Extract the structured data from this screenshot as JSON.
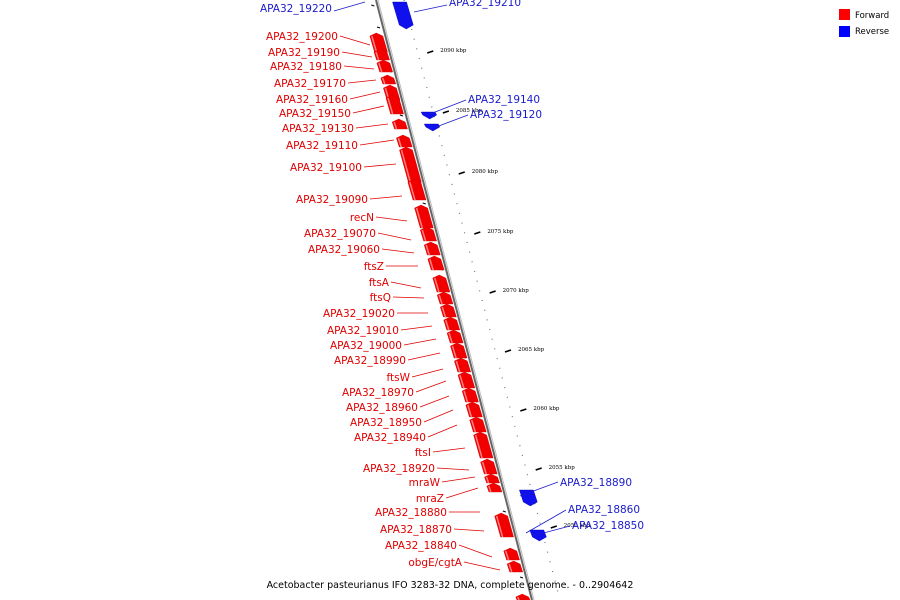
{
  "caption": "Acetobacter pasteurianus IFO 3283-32 DNA, complete genome. - 0..2904642",
  "legend": [
    {
      "label": "Forward",
      "color": "#ff0000"
    },
    {
      "label": "Reverse",
      "color": "#0000ff"
    }
  ],
  "ticks": [
    "2090 kbp",
    "2085 kbp",
    "2080 kbp",
    "2075 kbp",
    "2070 kbp",
    "2065 kbp",
    "2060 kbp",
    "2055 kbp",
    "2050 kbp"
  ],
  "forward_genes": [
    "APA32_19200",
    "APA32_19190",
    "APA32_19180",
    "APA32_19170",
    "APA32_19160",
    "APA32_19150",
    "APA32_19130",
    "APA32_19110",
    "APA32_19100",
    "APA32_19090",
    "recN",
    "APA32_19070",
    "APA32_19060",
    "ftsZ",
    "ftsA",
    "ftsQ",
    "APA32_19020",
    "APA32_19010",
    "APA32_19000",
    "APA32_18990",
    "ftsW",
    "APA32_18970",
    "APA32_18960",
    "APA32_18950",
    "APA32_18940",
    "ftsI",
    "APA32_18920",
    "mraW",
    "mraZ",
    "APA32_18880",
    "APA32_18870",
    "APA32_18840",
    "obgE/cgtA"
  ],
  "reverse_genes": [
    "APA32_19220",
    "APA32_19210",
    "APA32_19140",
    "APA32_19120",
    "APA32_18890",
    "APA32_18860",
    "APA32_18850"
  ]
}
